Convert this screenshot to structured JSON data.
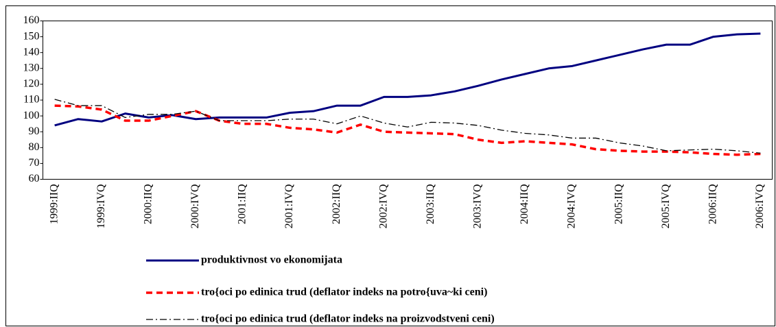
{
  "chart_data": {
    "type": "line",
    "categories": [
      "1999:IIQ",
      null,
      "1999:IVQ",
      null,
      "2000:IIQ",
      null,
      "2000:IVQ",
      null,
      "2001:IIQ",
      null,
      "2001:IVQ",
      null,
      "2002:IIQ",
      null,
      "2002:IVQ",
      null,
      "2003:IIQ",
      null,
      "2003:IVQ",
      null,
      "2004:IIQ",
      null,
      "2004:IVQ",
      null,
      "2005:IIQ",
      null,
      "2005:IVQ",
      null,
      "2006:IIQ",
      null,
      "2006:IVQ"
    ],
    "series": [
      {
        "name": "produktivnost vo ekonomijata",
        "color": "#000080",
        "style": "solid",
        "values": [
          94,
          98,
          96.5,
          101.5,
          99,
          100.5,
          98,
          99,
          99,
          99,
          102,
          103,
          106.5,
          106.5,
          112,
          112,
          113,
          115.5,
          119,
          123,
          126.5,
          130,
          131.5,
          135,
          138.5,
          142,
          145,
          145,
          150,
          151.5,
          152
        ]
      },
      {
        "name": "tro{oci po edinica trud (deflator indeks na potro{uva~ki ceni)",
        "color": "#ff0000",
        "style": "dashed",
        "values": [
          106.5,
          106,
          104,
          97,
          97,
          100,
          103,
          97,
          95,
          95,
          92.5,
          91.5,
          89.5,
          94.5,
          90,
          89.5,
          89,
          88.5,
          85,
          83,
          84,
          83,
          82,
          79,
          78,
          77.5,
          77.5,
          77,
          76,
          75.5,
          76
        ]
      },
      {
        "name": "tro{oci po edinica trud (deflator indeks na proizvodstveni ceni)",
        "color": "#000000",
        "style": "dashdot",
        "values": [
          110.5,
          106.5,
          106.5,
          99,
          101,
          101,
          103,
          97,
          97,
          97,
          98,
          98,
          95,
          100,
          95.5,
          93,
          96,
          95.5,
          94,
          91,
          89,
          88,
          86,
          86,
          83,
          81,
          78,
          78.5,
          79,
          78,
          76.5
        ]
      }
    ],
    "ylim": [
      60,
      160
    ],
    "yticks": [
      60,
      70,
      80,
      90,
      100,
      110,
      120,
      130,
      140,
      150,
      160
    ],
    "grid": false
  }
}
